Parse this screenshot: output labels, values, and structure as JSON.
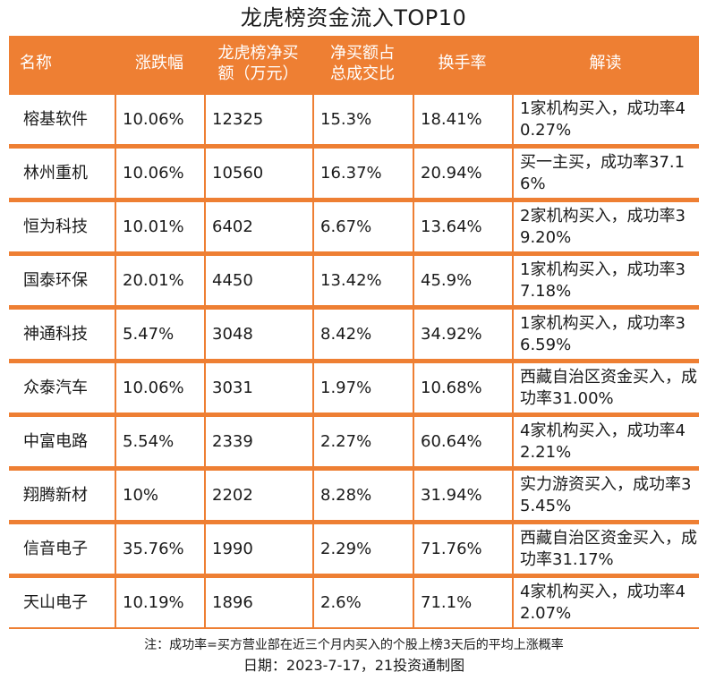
{
  "title": "龙虎榜资金流入TOP10",
  "headers": [
    "名称",
    "涨跌幅",
    "龙虎榜净买额（万元）",
    "净买额占总成交比",
    "换手率",
    "解读"
  ],
  "header_lines": [
    [
      "名称"
    ],
    [
      "涨跌幅"
    ],
    [
      "龙虎榜净买",
      "额（万元）"
    ],
    [
      "净买额占",
      "总成交比"
    ],
    [
      "换手率"
    ],
    [
      "解读"
    ]
  ],
  "rows": [
    [
      "榕基软件",
      "10.06%",
      "12325",
      "15.3%",
      "18.41%",
      "1家机构买入，成功率40.27%"
    ],
    [
      "林州重机",
      "10.06%",
      "10560",
      "16.37%",
      "20.94%",
      "买一主买，成功率37.16%"
    ],
    [
      "恒为科技",
      "10.01%",
      "6402",
      "6.67%",
      "13.64%",
      "2家机构买入，成功率39.20%"
    ],
    [
      "国泰环保",
      "20.01%",
      "4450",
      "13.42%",
      "45.9%",
      "1家机构买入，成功率37.18%"
    ],
    [
      "神通科技",
      "5.47%",
      "3048",
      "8.42%",
      "34.92%",
      "1家机构买入，成功率36.59%"
    ],
    [
      "众泰汽车",
      "10.06%",
      "3031",
      "1.97%",
      "10.68%",
      "西藏自治区资金买入，成功率31.00%"
    ],
    [
      "中富电路",
      "5.54%",
      "2339",
      "2.27%",
      "60.64%",
      "4家机构买入，成功率42.21%"
    ],
    [
      "翔腾新材",
      "10%",
      "2202",
      "8.28%",
      "31.94%",
      "实力游资买入，成功率35.45%"
    ],
    [
      "信音电子",
      "35.76%",
      "1990",
      "2.29%",
      "71.76%",
      "西藏自治区资金买入，成功率31.17%"
    ],
    [
      "天山电子",
      "10.19%",
      "1896",
      "2.6%",
      "71.1%",
      "4家机构买入，成功率42.07%"
    ]
  ],
  "note": "注：成功率=买方营业部在近三个月内买入的个股上榜3天后的平均上涨概率",
  "date": "日期：2023-7-17，21投资通制图",
  "colors": {
    "accent": "#ee7f33",
    "header_text": "#ffffff",
    "cell_bg": "#ffffff"
  }
}
